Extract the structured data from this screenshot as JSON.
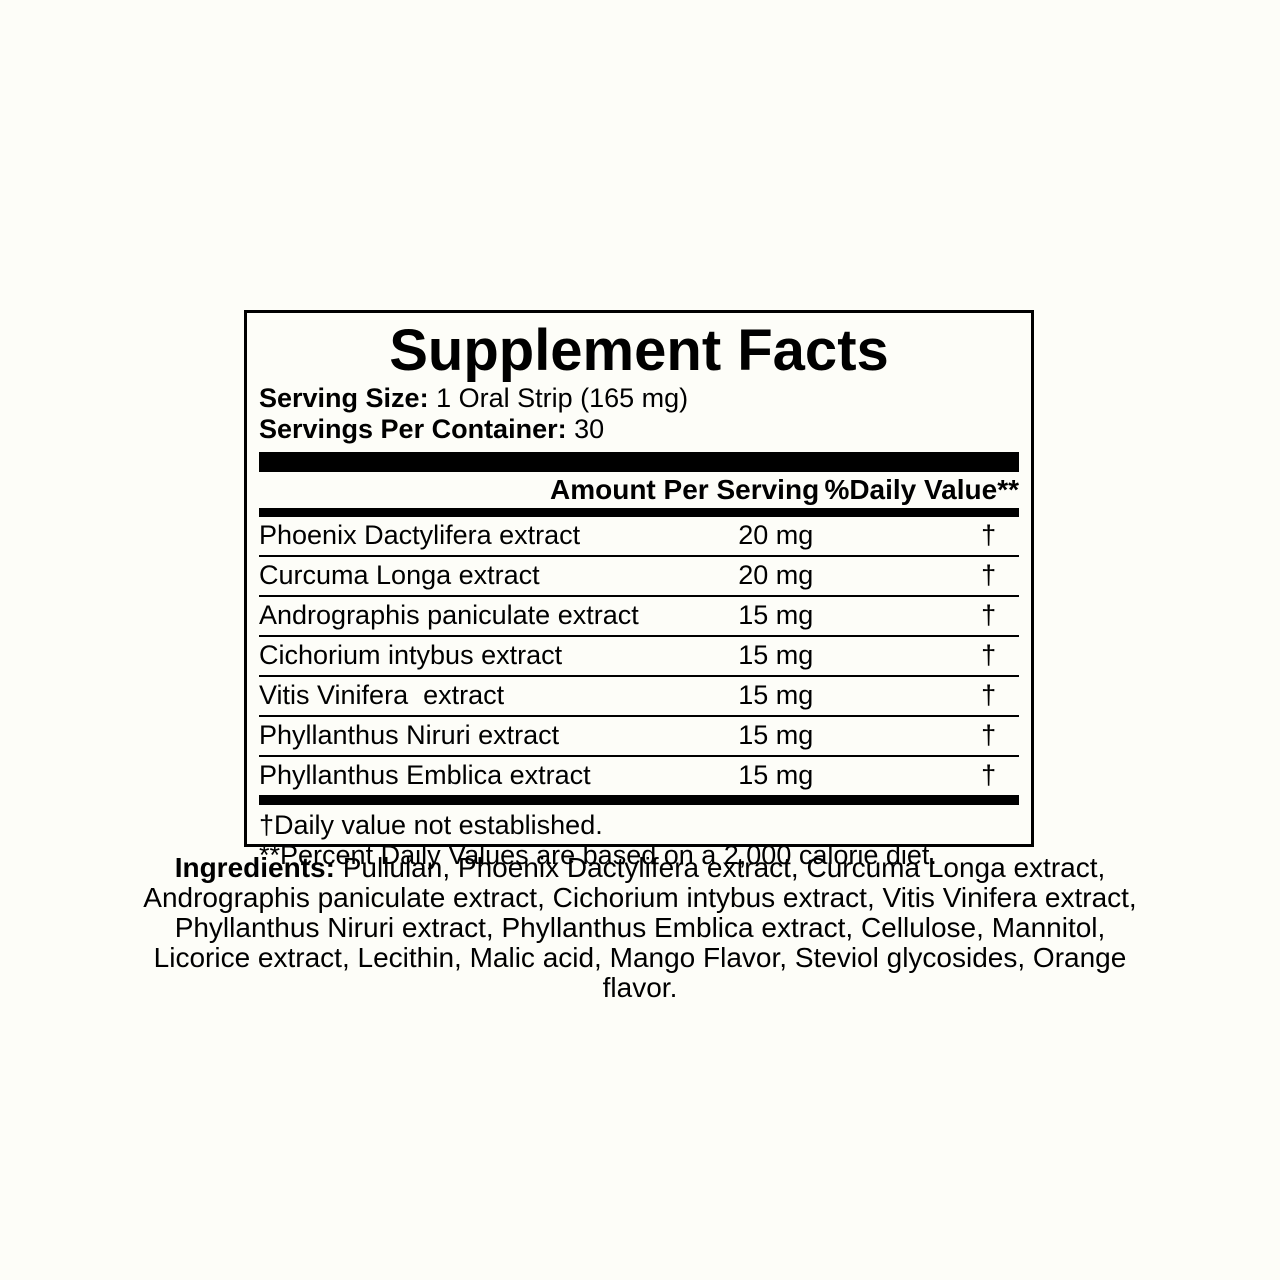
{
  "title": "Supplement Facts",
  "serving": {
    "size_label": "Serving Size:",
    "size_value": " 1 Oral Strip (165 mg)",
    "per_container_label": "Servings Per Container:",
    "per_container_value": " 30"
  },
  "table": {
    "headers": {
      "amount": "Amount Per Serving",
      "daily_value": "%Daily Value**"
    },
    "rows": [
      {
        "name": "Phoenix Dactylifera extract",
        "amount": "20 mg",
        "daily_value": "†"
      },
      {
        "name": "Curcuma Longa extract",
        "amount": "20 mg",
        "daily_value": "†"
      },
      {
        "name": "Andrographis paniculate extract",
        "amount": "15 mg",
        "daily_value": "†"
      },
      {
        "name": "Cichorium intybus extract",
        "amount": "15 mg",
        "daily_value": "†"
      },
      {
        "name": "Vitis Vinifera  extract",
        "amount": "15 mg",
        "daily_value": "†"
      },
      {
        "name": "Phyllanthus Niruri extract",
        "amount": "15 mg",
        "daily_value": "†"
      },
      {
        "name": "Phyllanthus Emblica extract",
        "amount": "15 mg",
        "daily_value": "†"
      }
    ]
  },
  "footnotes": [
    "†Daily value not established.",
    "**Percent Daily Values are based on a 2,000 calorie diet."
  ],
  "ingredients": {
    "label": "Ingredients:",
    "text": " Pullulan, Phoenix Dactylifera extract, Curcuma Longa extract, Andrographis paniculate extract, Cichorium intybus extract, Vitis Vinifera extract, Phyllanthus Niruri extract, Phyllanthus Emblica extract, Cellulose, Mannitol, Licorice extract, Lecithin, Malic acid, Mango Flavor, Steviol glycosides, Orange flavor."
  },
  "colors": {
    "background": "#fdfdf8",
    "text": "#000000",
    "rule": "#000000"
  }
}
